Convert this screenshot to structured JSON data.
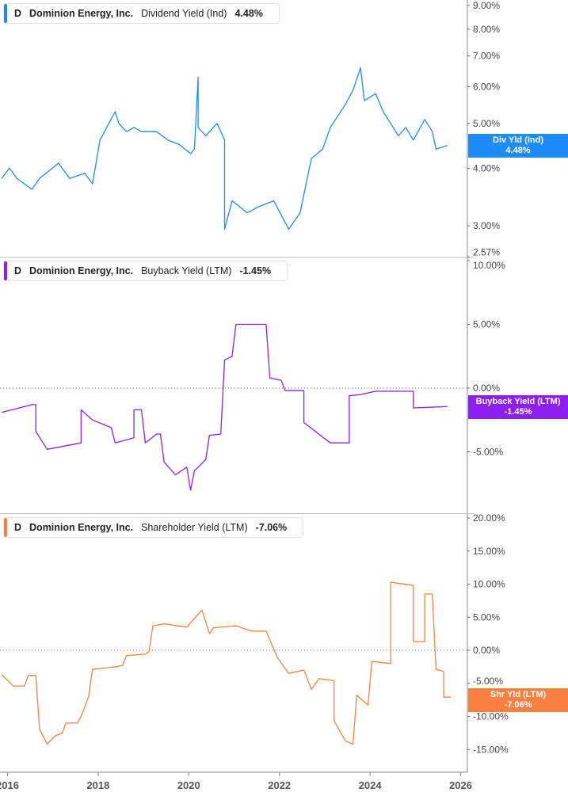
{
  "chart_data": [
    {
      "type": "line",
      "ticker": "D",
      "company": "Dominion Energy, Inc.",
      "metric": "Dividend Yield (Ind)",
      "current": "4.48%",
      "flag_label": "Div Yld (Ind)",
      "color": "#1e8cf8",
      "yscale": "log",
      "ylim": [
        2.57,
        9.2
      ],
      "yticks": [
        "9.00%",
        "8.00%",
        "7.00%",
        "6.00%",
        "5.00%",
        "4.00%",
        "3.00%",
        "2.57%"
      ],
      "ytick_values": [
        9,
        8,
        7,
        6,
        5,
        4,
        3,
        2.57
      ],
      "points": [
        [
          "2015-11",
          3.8
        ],
        [
          "2016-01",
          4.0
        ],
        [
          "2016-03",
          3.8
        ],
        [
          "2016-07",
          3.6
        ],
        [
          "2016-09",
          3.8
        ],
        [
          "2017-02",
          4.1
        ],
        [
          "2017-05",
          3.8
        ],
        [
          "2017-09",
          3.9
        ],
        [
          "2017-11",
          3.7
        ],
        [
          "2018-01",
          4.6
        ],
        [
          "2018-05",
          5.3
        ],
        [
          "2018-06",
          5.0
        ],
        [
          "2018-08",
          4.8
        ],
        [
          "2018-10",
          4.9
        ],
        [
          "2018-12",
          4.8
        ],
        [
          "2019-04",
          4.8
        ],
        [
          "2019-07",
          4.6
        ],
        [
          "2019-10",
          4.5
        ],
        [
          "2020-01",
          4.3
        ],
        [
          "2020-02",
          4.4
        ],
        [
          "2020-03",
          6.3
        ],
        [
          "2020-03",
          4.9
        ],
        [
          "2020-05",
          4.7
        ],
        [
          "2020-08",
          5.0
        ],
        [
          "2020-10",
          4.6
        ],
        [
          "2020-10",
          2.95
        ],
        [
          "2020-12",
          3.4
        ],
        [
          "2021-04",
          3.2
        ],
        [
          "2021-07",
          3.3
        ],
        [
          "2021-11",
          3.4
        ],
        [
          "2022-03",
          2.95
        ],
        [
          "2022-06",
          3.2
        ],
        [
          "2022-09",
          4.2
        ],
        [
          "2022-12",
          4.4
        ],
        [
          "2023-02",
          4.9
        ],
        [
          "2023-06",
          5.5
        ],
        [
          "2023-08",
          5.9
        ],
        [
          "2023-10",
          6.6
        ],
        [
          "2023-11",
          5.6
        ],
        [
          "2024-02",
          5.8
        ],
        [
          "2024-04",
          5.3
        ],
        [
          "2024-06",
          5.0
        ],
        [
          "2024-08",
          4.7
        ],
        [
          "2024-10",
          4.9
        ],
        [
          "2024-12",
          4.6
        ],
        [
          "2025-03",
          5.1
        ],
        [
          "2025-05",
          4.8
        ],
        [
          "2025-06",
          4.4
        ],
        [
          "2025-09",
          4.48
        ]
      ]
    },
    {
      "type": "line",
      "ticker": "D",
      "company": "Dominion Energy, Inc.",
      "metric": "Buyback Yield (LTM)",
      "current": "-1.45%",
      "flag_label": "Buyback Yield (LTM)",
      "color": "#8c1ef0",
      "yscale": "linear",
      "ylim": [
        -10,
        10
      ],
      "zero_line": true,
      "yticks": [
        "10.00%",
        "5.00%",
        "0.00%",
        "-5.00%"
      ],
      "ytick_values": [
        10,
        5,
        0,
        -5
      ],
      "points": [
        [
          "2015-11",
          -1.9
        ],
        [
          "2016-07",
          -1.3
        ],
        [
          "2016-08",
          -1.3
        ],
        [
          "2016-08",
          -3.4
        ],
        [
          "2016-11",
          -4.8
        ],
        [
          "2017-08",
          -4.3
        ],
        [
          "2017-08",
          -1.7
        ],
        [
          "2017-11",
          -2.5
        ],
        [
          "2018-04",
          -3.1
        ],
        [
          "2018-05",
          -4.3
        ],
        [
          "2018-10",
          -3.9
        ],
        [
          "2018-10",
          -1.7
        ],
        [
          "2018-12",
          -1.7
        ],
        [
          "2019-01",
          -4.3
        ],
        [
          "2019-04",
          -3.6
        ],
        [
          "2019-05",
          -3.6
        ],
        [
          "2019-06",
          -5.8
        ],
        [
          "2019-09",
          -6.8
        ],
        [
          "2019-12",
          -6.2
        ],
        [
          "2020-01",
          -8.0
        ],
        [
          "2020-02",
          -6.5
        ],
        [
          "2020-05",
          -5.6
        ],
        [
          "2020-06",
          -3.7
        ],
        [
          "2020-09",
          -3.6
        ],
        [
          "2020-10",
          2.2
        ],
        [
          "2020-12",
          2.5
        ],
        [
          "2021-01",
          5.0
        ],
        [
          "2021-09",
          5.0
        ],
        [
          "2021-10",
          0.8
        ],
        [
          "2022-01",
          0.6
        ],
        [
          "2022-02",
          -0.2
        ],
        [
          "2022-07",
          -0.2
        ],
        [
          "2022-07",
          -2.7
        ],
        [
          "2023-02",
          -4.3
        ],
        [
          "2023-07",
          -4.3
        ],
        [
          "2023-07",
          -0.6
        ],
        [
          "2023-10",
          -0.5
        ],
        [
          "2024-02",
          -0.25
        ],
        [
          "2024-12",
          -0.25
        ],
        [
          "2024-12",
          -1.55
        ],
        [
          "2025-09",
          -1.45
        ]
      ]
    },
    {
      "type": "line",
      "ticker": "D",
      "company": "Dominion Energy, Inc.",
      "metric": "Shareholder Yield (LTM)",
      "current": "-7.06%",
      "flag_label": "Shr Yld (LTM)",
      "color": "#fa8040",
      "yscale": "linear",
      "ylim": [
        -17,
        20.5
      ],
      "zero_line": true,
      "yticks": [
        "20.00%",
        "15.00%",
        "10.00%",
        "5.00%",
        "0.00%",
        "-5.00%",
        "-10.00%",
        "-15.00%"
      ],
      "ytick_values": [
        20,
        15,
        10,
        5,
        0,
        -5,
        -10,
        -15
      ],
      "points": [
        [
          "2015-11",
          -3.7
        ],
        [
          "2016-02",
          -5.4
        ],
        [
          "2016-05",
          -5.4
        ],
        [
          "2016-06",
          -3.8
        ],
        [
          "2016-08",
          -3.8
        ],
        [
          "2016-09",
          -11.9
        ],
        [
          "2016-11",
          -14.2
        ],
        [
          "2017-01",
          -13
        ],
        [
          "2017-03",
          -12.5
        ],
        [
          "2017-04",
          -11
        ],
        [
          "2017-07",
          -11
        ],
        [
          "2017-08",
          -10
        ],
        [
          "2017-10",
          -7
        ],
        [
          "2017-11",
          -2.9
        ],
        [
          "2018-05",
          -2.5
        ],
        [
          "2018-07",
          -2.3
        ],
        [
          "2018-08",
          -0.8
        ],
        [
          "2019-01",
          -0.6
        ],
        [
          "2019-02",
          -0.2
        ],
        [
          "2019-03",
          3.7
        ],
        [
          "2019-06",
          4.0
        ],
        [
          "2019-12",
          3.5
        ],
        [
          "2020-04",
          6.1
        ],
        [
          "2020-06",
          2.5
        ],
        [
          "2020-07",
          3.4
        ],
        [
          "2021-01",
          3.7
        ],
        [
          "2021-05",
          2.9
        ],
        [
          "2021-09",
          2.9
        ],
        [
          "2021-12",
          -1.1
        ],
        [
          "2022-03",
          -3.5
        ],
        [
          "2022-07",
          -3.0
        ],
        [
          "2022-09",
          -5.9
        ],
        [
          "2022-11",
          -4.3
        ],
        [
          "2023-03",
          -4.6
        ],
        [
          "2023-03",
          -10.7
        ],
        [
          "2023-06",
          -13.7
        ],
        [
          "2023-08",
          -14.2
        ],
        [
          "2023-09",
          -6.8
        ],
        [
          "2023-12",
          -8.3
        ],
        [
          "2024-01",
          -1.7
        ],
        [
          "2024-06",
          -2.0
        ],
        [
          "2024-06",
          10.3
        ],
        [
          "2024-12",
          9.8
        ],
        [
          "2024-12",
          1.3
        ],
        [
          "2025-03",
          1.3
        ],
        [
          "2025-03",
          8.5
        ],
        [
          "2025-05",
          8.5
        ],
        [
          "2025-06",
          -2.9
        ],
        [
          "2025-08",
          -3.2
        ],
        [
          "2025-08",
          -7.1
        ],
        [
          "2025-10",
          -7.06
        ]
      ]
    }
  ],
  "x_axis": {
    "ticks": [
      "2016",
      "2018",
      "2020",
      "2022",
      "2024",
      "2026"
    ],
    "tick_years": [
      2016,
      2018,
      2020,
      2022,
      2024,
      2026
    ]
  }
}
